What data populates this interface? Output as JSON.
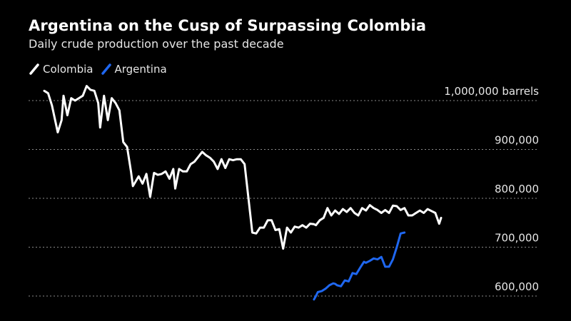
{
  "chart_data": {
    "type": "line",
    "title": "Argentina on the Cusp of Surpassing Colombia",
    "subtitle": "Daily crude production over the past decade",
    "y_ticks": [
      {
        "value": 1000000,
        "label": "1,000,000 barrels"
      },
      {
        "value": 900000,
        "label": "900,000"
      },
      {
        "value": 800000,
        "label": "800,000"
      },
      {
        "value": 700000,
        "label": "700,000"
      },
      {
        "value": 600000,
        "label": "600,000"
      }
    ],
    "ylim": [
      590000,
      1040000
    ],
    "xlim": [
      2013.0,
      2023.8
    ],
    "grid": true,
    "legend_position": "top-left",
    "series": [
      {
        "name": "Colombia",
        "color": "#ffffff",
        "x": [
          2013.0,
          2013.1,
          2013.2,
          2013.35,
          2013.45,
          2013.5,
          2013.6,
          2013.7,
          2013.8,
          2013.9,
          2014.0,
          2014.1,
          2014.2,
          2014.3,
          2014.4,
          2014.45,
          2014.55,
          2014.65,
          2014.75,
          2014.85,
          2014.95,
          2015.05,
          2015.15,
          2015.25,
          2015.3,
          2015.45,
          2015.55,
          2015.65,
          2015.75,
          2015.85,
          2015.95,
          2016.05,
          2016.15,
          2016.25,
          2016.35,
          2016.4,
          2016.5,
          2016.6,
          2016.7,
          2016.8,
          2016.9,
          2017.0,
          2017.1,
          2017.2,
          2017.3,
          2017.4,
          2017.5,
          2017.6,
          2017.7,
          2017.8,
          2017.9,
          2018.0,
          2018.1,
          2018.2,
          2018.3,
          2018.4,
          2018.5,
          2018.6,
          2018.7,
          2018.8,
          2018.9,
          2019.0,
          2019.1,
          2019.2,
          2019.3,
          2019.4,
          2019.5,
          2019.6,
          2019.7,
          2019.8,
          2019.9,
          2020.0,
          2020.05,
          2020.15,
          2020.25,
          2020.35,
          2020.45,
          2020.55,
          2020.65,
          2020.75,
          2020.85,
          2020.95,
          2021.05,
          2021.15,
          2021.25,
          2021.35,
          2021.45,
          2021.55,
          2021.65,
          2021.75,
          2021.85,
          2021.95,
          2022.05,
          2022.15,
          2022.25,
          2022.35,
          2022.45,
          2022.55,
          2022.65,
          2022.75,
          2022.85,
          2022.95,
          2023.05,
          2023.15,
          2023.25,
          2023.3
        ],
        "values": [
          1020000,
          1015000,
          990000,
          935000,
          960000,
          1010000,
          970000,
          1005000,
          1000000,
          1005000,
          1010000,
          1030000,
          1022000,
          1020000,
          995000,
          945000,
          1010000,
          960000,
          1005000,
          995000,
          980000,
          915000,
          905000,
          855000,
          825000,
          845000,
          830000,
          850000,
          803000,
          852000,
          848000,
          850000,
          855000,
          840000,
          860000,
          820000,
          860000,
          855000,
          855000,
          870000,
          875000,
          885000,
          895000,
          888000,
          883000,
          875000,
          860000,
          880000,
          862000,
          880000,
          878000,
          880000,
          880000,
          870000,
          800000,
          730000,
          728000,
          740000,
          740000,
          755000,
          755000,
          735000,
          737000,
          697000,
          740000,
          730000,
          742000,
          740000,
          745000,
          740000,
          748000,
          747000,
          745000,
          755000,
          760000,
          780000,
          765000,
          775000,
          768000,
          778000,
          772000,
          780000,
          770000,
          765000,
          780000,
          775000,
          786000,
          780000,
          776000,
          770000,
          776000,
          770000,
          785000,
          784000,
          776000,
          780000,
          765000,
          765000,
          770000,
          775000,
          770000,
          778000,
          774000,
          770000,
          748000,
          760000
        ]
      },
      {
        "name": "Argentina",
        "color": "#1f67f0",
        "x": [
          2020.0,
          2020.05,
          2020.1,
          2020.2,
          2020.3,
          2020.4,
          2020.5,
          2020.55,
          2020.6,
          2020.7,
          2020.8,
          2020.9,
          2021.0,
          2021.1,
          2021.2,
          2021.3,
          2021.35,
          2021.45,
          2021.55,
          2021.65,
          2021.75,
          2021.85,
          2021.95,
          2022.05,
          2022.15,
          2022.25,
          2022.35
        ],
        "values": [
          593000,
          600000,
          608000,
          610000,
          615000,
          622000,
          626000,
          625000,
          622000,
          620000,
          632000,
          630000,
          647000,
          645000,
          658000,
          670000,
          668000,
          672000,
          677000,
          675000,
          680000,
          660000,
          660000,
          675000,
          700000,
          728000,
          730000
        ]
      }
    ]
  }
}
